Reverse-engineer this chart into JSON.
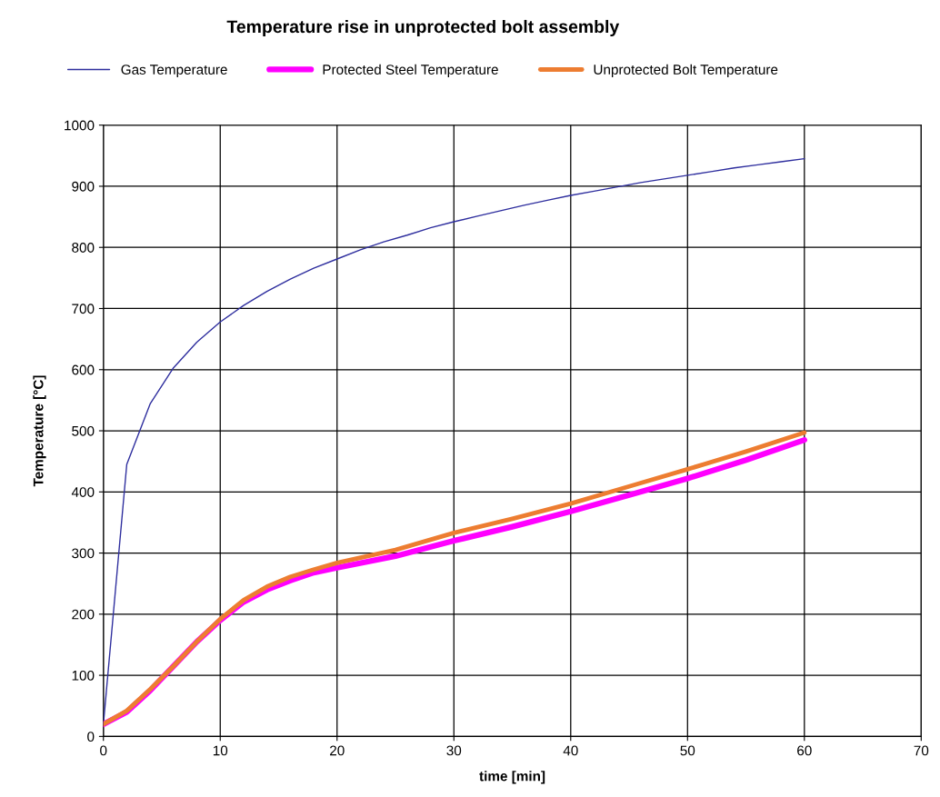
{
  "chart_data": {
    "type": "line",
    "title": "Temperature rise in unprotected bolt assembly",
    "xlabel": "time [min]",
    "ylabel": "Temperature [°C]",
    "xlim": [
      0,
      70
    ],
    "xticks": [
      0,
      10,
      20,
      30,
      40,
      50,
      60,
      70
    ],
    "ylim": [
      0,
      1000
    ],
    "yticks": [
      0,
      100,
      200,
      300,
      400,
      500,
      600,
      700,
      800,
      900,
      1000
    ],
    "grid": true,
    "legend": "top",
    "marker": "none",
    "line_style": "solid",
    "series": [
      {
        "name": "Gas Temperature",
        "color": "#2e2e9e",
        "x": [
          0,
          2,
          4,
          6,
          8,
          10,
          12,
          14,
          16,
          18,
          20,
          22,
          24,
          26,
          28,
          30,
          32,
          34,
          36,
          38,
          40,
          42,
          44,
          46,
          48,
          50,
          52,
          54,
          56,
          58,
          60
        ],
        "values": [
          20,
          445,
          544,
          603,
          645,
          678,
          705,
          728,
          748,
          766,
          781,
          796,
          809,
          820,
          832,
          842,
          851,
          860,
          869,
          877,
          885,
          892,
          899,
          906,
          912,
          918,
          924,
          930,
          935,
          940,
          945
        ]
      },
      {
        "name": "Protected Steel Temperature",
        "color": "#ff00ff",
        "x": [
          0,
          2,
          4,
          6,
          8,
          10,
          12,
          14,
          16,
          18,
          20,
          25,
          30,
          35,
          40,
          45,
          50,
          55,
          60
        ],
        "values": [
          20,
          40,
          75,
          115,
          155,
          190,
          220,
          240,
          255,
          268,
          276,
          295,
          320,
          343,
          368,
          395,
          422,
          452,
          485
        ]
      },
      {
        "name": "Unprotected Bolt Temperature",
        "color": "#ed7d31",
        "x": [
          0,
          2,
          4,
          6,
          8,
          10,
          12,
          14,
          16,
          18,
          20,
          25,
          30,
          35,
          40,
          45,
          50,
          55,
          60
        ],
        "values": [
          20,
          42,
          77,
          115,
          155,
          192,
          223,
          245,
          261,
          273,
          284,
          305,
          333,
          356,
          381,
          409,
          437,
          466,
          497
        ]
      }
    ]
  }
}
